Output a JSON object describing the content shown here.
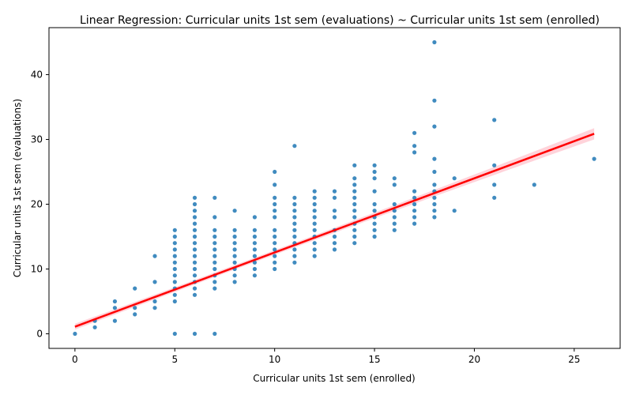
{
  "chart_data": {
    "type": "scatter",
    "title": "Linear Regression: Curricular units 1st sem (evaluations) ~ Curricular units 1st sem (enrolled)",
    "xlabel": "Curricular units 1st sem (enrolled)",
    "ylabel": "Curricular units 1st sem (evaluations)",
    "xlim": [
      -1.3,
      27.3
    ],
    "ylim": [
      -2.25,
      47.25
    ],
    "xticks": [
      0,
      5,
      10,
      15,
      20,
      25
    ],
    "yticks": [
      0,
      10,
      20,
      30,
      40
    ],
    "grid": false,
    "colors": {
      "points": "#1f77b4",
      "regression_line": "#ff0000",
      "confidence_band": "#ffb6c1"
    },
    "points": [
      [
        0,
        0
      ],
      [
        1,
        1
      ],
      [
        1,
        2
      ],
      [
        2,
        2
      ],
      [
        2,
        4
      ],
      [
        2,
        5
      ],
      [
        3,
        3
      ],
      [
        3,
        4
      ],
      [
        3,
        7
      ],
      [
        4,
        4
      ],
      [
        4,
        5
      ],
      [
        4,
        8
      ],
      [
        4,
        12
      ],
      [
        5,
        0
      ],
      [
        5,
        5
      ],
      [
        5,
        6
      ],
      [
        5,
        7
      ],
      [
        5,
        8
      ],
      [
        5,
        9
      ],
      [
        5,
        10
      ],
      [
        5,
        11
      ],
      [
        5,
        12
      ],
      [
        5,
        13
      ],
      [
        5,
        14
      ],
      [
        5,
        15
      ],
      [
        5,
        16
      ],
      [
        6,
        0
      ],
      [
        6,
        6
      ],
      [
        6,
        7
      ],
      [
        6,
        8
      ],
      [
        6,
        9
      ],
      [
        6,
        10
      ],
      [
        6,
        11
      ],
      [
        6,
        12
      ],
      [
        6,
        13
      ],
      [
        6,
        14
      ],
      [
        6,
        15
      ],
      [
        6,
        16
      ],
      [
        6,
        17
      ],
      [
        6,
        18
      ],
      [
        6,
        19
      ],
      [
        6,
        20
      ],
      [
        6,
        21
      ],
      [
        7,
        0
      ],
      [
        7,
        7
      ],
      [
        7,
        8
      ],
      [
        7,
        9
      ],
      [
        7,
        10
      ],
      [
        7,
        11
      ],
      [
        7,
        12
      ],
      [
        7,
        13
      ],
      [
        7,
        14
      ],
      [
        7,
        15
      ],
      [
        7,
        16
      ],
      [
        7,
        18
      ],
      [
        7,
        21
      ],
      [
        8,
        8
      ],
      [
        8,
        9
      ],
      [
        8,
        10
      ],
      [
        8,
        11
      ],
      [
        8,
        12
      ],
      [
        8,
        13
      ],
      [
        8,
        14
      ],
      [
        8,
        15
      ],
      [
        8,
        16
      ],
      [
        8,
        19
      ],
      [
        9,
        9
      ],
      [
        9,
        10
      ],
      [
        9,
        11
      ],
      [
        9,
        12
      ],
      [
        9,
        13
      ],
      [
        9,
        14
      ],
      [
        9,
        15
      ],
      [
        9,
        16
      ],
      [
        9,
        18
      ],
      [
        10,
        10
      ],
      [
        10,
        11
      ],
      [
        10,
        12
      ],
      [
        10,
        13
      ],
      [
        10,
        14
      ],
      [
        10,
        15
      ],
      [
        10,
        16
      ],
      [
        10,
        18
      ],
      [
        10,
        19
      ],
      [
        10,
        20
      ],
      [
        10,
        21
      ],
      [
        10,
        23
      ],
      [
        10,
        25
      ],
      [
        11,
        11
      ],
      [
        11,
        12
      ],
      [
        11,
        13
      ],
      [
        11,
        14
      ],
      [
        11,
        15
      ],
      [
        11,
        16
      ],
      [
        11,
        17
      ],
      [
        11,
        18
      ],
      [
        11,
        19
      ],
      [
        11,
        20
      ],
      [
        11,
        21
      ],
      [
        11,
        29
      ],
      [
        12,
        12
      ],
      [
        12,
        13
      ],
      [
        12,
        14
      ],
      [
        12,
        15
      ],
      [
        12,
        16
      ],
      [
        12,
        17
      ],
      [
        12,
        18
      ],
      [
        12,
        19
      ],
      [
        12,
        20
      ],
      [
        12,
        21
      ],
      [
        12,
        22
      ],
      [
        13,
        13
      ],
      [
        13,
        14
      ],
      [
        13,
        15
      ],
      [
        13,
        16
      ],
      [
        13,
        18
      ],
      [
        13,
        19
      ],
      [
        13,
        21
      ],
      [
        13,
        22
      ],
      [
        14,
        14
      ],
      [
        14,
        15
      ],
      [
        14,
        16
      ],
      [
        14,
        17
      ],
      [
        14,
        18
      ],
      [
        14,
        19
      ],
      [
        14,
        20
      ],
      [
        14,
        21
      ],
      [
        14,
        22
      ],
      [
        14,
        23
      ],
      [
        14,
        24
      ],
      [
        14,
        26
      ],
      [
        15,
        15
      ],
      [
        15,
        16
      ],
      [
        15,
        17
      ],
      [
        15,
        18
      ],
      [
        15,
        19
      ],
      [
        15,
        20
      ],
      [
        15,
        22
      ],
      [
        15,
        24
      ],
      [
        15,
        25
      ],
      [
        15,
        26
      ],
      [
        16,
        16
      ],
      [
        16,
        17
      ],
      [
        16,
        18
      ],
      [
        16,
        19
      ],
      [
        16,
        20
      ],
      [
        16,
        23
      ],
      [
        16,
        24
      ],
      [
        17,
        17
      ],
      [
        17,
        18
      ],
      [
        17,
        19
      ],
      [
        17,
        20
      ],
      [
        17,
        21
      ],
      [
        17,
        22
      ],
      [
        17,
        28
      ],
      [
        17,
        29
      ],
      [
        17,
        31
      ],
      [
        18,
        18
      ],
      [
        18,
        19
      ],
      [
        18,
        20
      ],
      [
        18,
        21
      ],
      [
        18,
        22
      ],
      [
        18,
        23
      ],
      [
        18,
        25
      ],
      [
        18,
        27
      ],
      [
        18,
        32
      ],
      [
        18,
        36
      ],
      [
        18,
        45
      ],
      [
        19,
        19
      ],
      [
        19,
        24
      ],
      [
        21,
        21
      ],
      [
        21,
        23
      ],
      [
        21,
        26
      ],
      [
        21,
        33
      ],
      [
        23,
        23
      ],
      [
        26,
        27
      ]
    ],
    "regression": {
      "intercept": 1.1,
      "slope": 1.145,
      "x_range": [
        0,
        26
      ]
    }
  }
}
